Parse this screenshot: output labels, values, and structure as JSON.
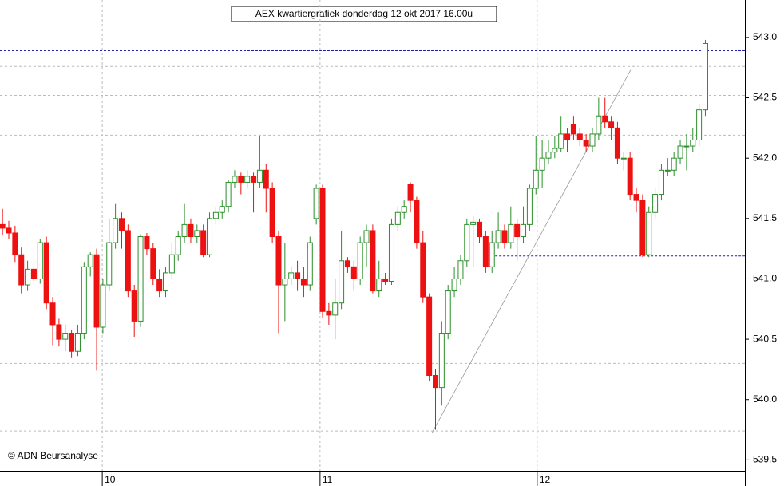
{
  "chart_data": {
    "type": "candlestick",
    "title": "AEX kwartiergrafiek donderdag 12 okt 2017 16.00u",
    "footer": "© ADN Beursanalyse",
    "up_color": "#2a8f2a",
    "down_color": "#ee1111",
    "xlim": [
      -0.4,
      118.3
    ],
    "ylim": [
      539.41,
      543.31
    ],
    "xticks": [
      {
        "value": 15.9,
        "label": "10"
      },
      {
        "value": 50.6,
        "label": "11"
      },
      {
        "value": 85.2,
        "label": "12"
      }
    ],
    "yticks": [
      {
        "value": 543,
        "label": "543.0"
      },
      {
        "value": 542.5,
        "label": "542.5"
      },
      {
        "value": 542,
        "label": "542.0"
      },
      {
        "value": 541.5,
        "label": "541.5"
      },
      {
        "value": 541,
        "label": "541.0"
      },
      {
        "value": 540.5,
        "label": "540.5"
      },
      {
        "value": 540,
        "label": "540.0"
      },
      {
        "value": 539.5,
        "label": "539.5"
      }
    ],
    "levels": [
      542.76,
      542.52,
      542.19,
      540.3,
      539.74
    ],
    "hlines": [
      {
        "value": 542.89,
        "start": -0.4,
        "color": "#2222aa"
      },
      {
        "value": 541.19,
        "start": 78.5,
        "color": "#2222aa"
      }
    ],
    "trendline": {
      "x": [
        68.4,
        100.1
      ],
      "y": [
        539.72,
        542.73
      ],
      "color": "#999999"
    },
    "open": [
      541.45,
      541.42,
      541.38,
      541.2,
      540.95,
      541.08,
      541,
      541.3,
      540.8,
      540.62,
      540.5,
      540.55,
      540.4,
      540.55,
      541.1,
      541.2,
      540.6,
      540.95,
      541.3,
      541.5,
      541.4,
      540.9,
      540.65,
      541.35,
      541.25,
      541,
      540.9,
      541.05,
      541.2,
      541.35,
      541.45,
      541.35,
      541.4,
      541.2,
      541.5,
      541.55,
      541.6,
      541.8,
      541.85,
      541.8,
      541.85,
      541.8,
      541.9,
      541.75,
      541.35,
      540.95,
      541,
      541.05,
      541,
      540.95,
      541.5,
      541.75,
      540.73,
      540.7,
      540.8,
      541.15,
      541.1,
      541,
      541.3,
      541.4,
      540.9,
      541,
      540.98,
      541.45,
      541.55,
      541.78,
      541.65,
      541.3,
      540.85,
      540.2,
      540.1,
      540.55,
      540.9,
      541,
      541.15,
      541.45,
      541.47,
      541.35,
      541.1,
      541.3,
      541.4,
      541.3,
      541.45,
      541.35,
      541.45,
      541.75,
      541.9,
      542,
      542.05,
      542.08,
      542.2,
      542.28,
      542.2,
      542.15,
      542.1,
      542.2,
      542.35,
      542.3,
      542.25,
      542,
      542,
      541.7,
      541.65,
      541.2,
      541.55,
      541.7,
      541.9,
      541.9,
      542,
      542.1,
      542.1,
      542.15,
      542.4
    ],
    "high": [
      541.58,
      541.48,
      541.44,
      541.26,
      541.15,
      541.14,
      541.33,
      541.35,
      540.85,
      540.67,
      540.62,
      540.58,
      540.62,
      541.14,
      541.22,
      541.25,
      541,
      541.5,
      541.62,
      541.55,
      541.45,
      540.95,
      541.37,
      541.38,
      541.3,
      541.08,
      541.1,
      541.3,
      541.4,
      541.62,
      541.5,
      541.45,
      541.45,
      541.55,
      541.6,
      541.65,
      541.82,
      541.9,
      541.88,
      541.9,
      541.88,
      542.18,
      541.95,
      541.8,
      541.4,
      541.3,
      541.1,
      541.15,
      541.1,
      541.35,
      541.78,
      541.78,
      540.8,
      541,
      541.4,
      541.18,
      541.15,
      541.35,
      541.45,
      541.45,
      541.15,
      541.05,
      541.5,
      541.6,
      541.65,
      541.8,
      541.68,
      541.4,
      540.88,
      540.25,
      540.65,
      540.95,
      541.1,
      541.2,
      541.5,
      541.52,
      541.5,
      541.4,
      541.4,
      541.55,
      541.45,
      541.6,
      541.5,
      541.6,
      541.78,
      542.18,
      542.15,
      542.15,
      542.18,
      542.35,
      542.25,
      542.35,
      542.25,
      542.2,
      542.25,
      542.5,
      542.5,
      542.35,
      542.3,
      542.05,
      542.05,
      541.75,
      541.7,
      541.6,
      541.75,
      541.95,
      542,
      542.05,
      542.15,
      542.2,
      542.25,
      542.45,
      542.98
    ],
    "low": [
      541.36,
      541.33,
      541.14,
      540.88,
      540.9,
      540.95,
      540.96,
      540.75,
      540.45,
      540.44,
      540.4,
      540.35,
      540.36,
      540.5,
      541.02,
      540.24,
      540.55,
      540.9,
      541.25,
      541.25,
      540.85,
      540.52,
      540.6,
      541.2,
      540.95,
      540.85,
      540.85,
      541,
      541.15,
      541.3,
      541.3,
      541.3,
      541.18,
      541.18,
      541.45,
      541.5,
      541.55,
      541.75,
      541.7,
      541.75,
      541.55,
      541.75,
      541.55,
      541.3,
      540.55,
      540.65,
      540.95,
      540.9,
      540.85,
      540.9,
      541.45,
      540.68,
      540.62,
      540.5,
      540.75,
      541.05,
      540.9,
      540.95,
      541.1,
      540.88,
      540.85,
      540.95,
      540.95,
      541.4,
      541.5,
      541.55,
      541.25,
      540.8,
      540.15,
      539.75,
      539.95,
      540.5,
      540.85,
      540.95,
      541.1,
      541.1,
      541.3,
      541.05,
      541.05,
      541.25,
      541.25,
      541.25,
      541.15,
      541.3,
      541.4,
      541.7,
      541.75,
      541.95,
      542,
      542.05,
      542.05,
      542.15,
      542.1,
      542.05,
      542.05,
      542.15,
      542.25,
      542.15,
      541.95,
      541.9,
      541.65,
      541.55,
      541.18,
      541.18,
      541.5,
      541.65,
      541.85,
      541.85,
      541.95,
      541.9,
      542.05,
      542.1,
      542.35
    ],
    "close": [
      541.42,
      541.38,
      541.2,
      540.95,
      541.08,
      541,
      541.3,
      540.8,
      540.62,
      540.5,
      540.55,
      540.4,
      540.55,
      541.1,
      541.2,
      540.6,
      540.95,
      541.3,
      541.5,
      541.4,
      540.9,
      540.65,
      541.35,
      541.25,
      541,
      540.9,
      541.05,
      541.2,
      541.35,
      541.45,
      541.35,
      541.4,
      541.2,
      541.5,
      541.55,
      541.6,
      541.8,
      541.85,
      541.8,
      541.85,
      541.8,
      541.9,
      541.75,
      541.35,
      540.95,
      541,
      541.05,
      541,
      540.95,
      541.3,
      541.75,
      540.73,
      540.7,
      540.8,
      541.15,
      541.1,
      541,
      541.3,
      541.4,
      540.9,
      541,
      540.98,
      541.45,
      541.55,
      541.6,
      541.65,
      541.3,
      540.85,
      540.2,
      540.1,
      540.55,
      540.9,
      541,
      541.15,
      541.45,
      541.47,
      541.35,
      541.1,
      541.3,
      541.4,
      541.3,
      541.45,
      541.35,
      541.45,
      541.75,
      541.9,
      542,
      542.05,
      542.08,
      542.2,
      542.15,
      542.2,
      542.15,
      542.1,
      542.2,
      542.35,
      542.3,
      542.25,
      542,
      542,
      541.7,
      541.65,
      541.2,
      541.55,
      541.7,
      541.9,
      541.9,
      542,
      542.1,
      542.1,
      542.15,
      542.4,
      542.95
    ]
  }
}
